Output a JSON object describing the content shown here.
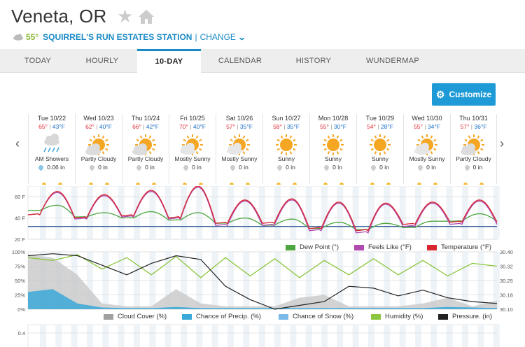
{
  "location": {
    "city": "Veneta, OR",
    "current_temp": "55°",
    "station": "SQUIRREL'S RUN ESTATES STATION",
    "separator": "|",
    "change_label": "CHANGE"
  },
  "tabs": [
    {
      "label": "TODAY"
    },
    {
      "label": "HOURLY"
    },
    {
      "label": "10-DAY",
      "active": true
    },
    {
      "label": "CALENDAR"
    },
    {
      "label": "HISTORY"
    },
    {
      "label": "WUNDERMAP"
    }
  ],
  "customize_label": "Customize",
  "days": [
    {
      "name": "Tue 10/22",
      "hi": "65°",
      "lo": "43°F",
      "icon": "rain-cloud-icon",
      "cond": "AM Showers",
      "precip": "0.06 in",
      "wet": true
    },
    {
      "name": "Wed 10/23",
      "hi": "62°",
      "lo": "40°F",
      "icon": "partly-cloudy-icon",
      "cond": "Partly Cloudy",
      "precip": "0 in"
    },
    {
      "name": "Thu 10/24",
      "hi": "66°",
      "lo": "42°F",
      "icon": "partly-cloudy-icon",
      "cond": "Partly Cloudy",
      "precip": "0 in"
    },
    {
      "name": "Fri 10/25",
      "hi": "70°",
      "lo": "40°F",
      "icon": "mostly-sunny-icon",
      "cond": "Mostly Sunny",
      "precip": "0 in"
    },
    {
      "name": "Sat 10/26",
      "hi": "57°",
      "lo": "35°F",
      "icon": "mostly-sunny-icon",
      "cond": "Mostly Sunny",
      "precip": "0 in"
    },
    {
      "name": "Sun 10/27",
      "hi": "58°",
      "lo": "35°F",
      "icon": "sunny-icon",
      "cond": "Sunny",
      "precip": "0 in"
    },
    {
      "name": "Mon 10/28",
      "hi": "55°",
      "lo": "30°F",
      "icon": "sunny-icon",
      "cond": "Sunny",
      "precip": "0 in"
    },
    {
      "name": "Tue 10/29",
      "hi": "54°",
      "lo": "28°F",
      "icon": "sunny-icon",
      "cond": "Sunny",
      "precip": "0 in"
    },
    {
      "name": "Wed 10/30",
      "hi": "55°",
      "lo": "34°F",
      "icon": "mostly-sunny-icon",
      "cond": "Mostly Sunny",
      "precip": "0 in"
    },
    {
      "name": "Thu 10/31",
      "hi": "57°",
      "lo": "36°F",
      "icon": "partly-cloudy-icon",
      "cond": "Partly Cloudy",
      "precip": "0 in"
    }
  ],
  "temp_chart": {
    "y_ticks": [
      "60 F",
      "40 F",
      "20 F"
    ],
    "freeze_line": 32,
    "legend": [
      {
        "label": "Dew Point (°)",
        "color": "#4ea641"
      },
      {
        "label": "Feels Like (°F)",
        "color": "#b04ab0"
      },
      {
        "label": "Temperature (°F)",
        "color": "#d9262e"
      }
    ]
  },
  "cloud_chart": {
    "y_left_ticks": [
      "100%",
      "75%",
      "50%",
      "25%",
      "0%"
    ],
    "y_right_ticks": [
      "30.40",
      "30.32",
      "30.25",
      "30.18",
      "30.10"
    ],
    "legend": [
      {
        "label": "Cloud Cover (%)",
        "color": "#a0a0a0"
      },
      {
        "label": "Chance of Precip. (%)",
        "color": "#3aa8d8"
      },
      {
        "label": "Chance of Snow (%)",
        "color": "#7ab8e8"
      },
      {
        "label": "Humidity (%)",
        "color": "#8cc63f"
      },
      {
        "label": "Pressure. (in)",
        "color": "#222222"
      }
    ]
  },
  "precip_chart": {
    "y_ticks": [
      "0.4"
    ]
  },
  "chart_data": {
    "type": "line",
    "x": [
      "Tue 10/22",
      "Wed 10/23",
      "Thu 10/24",
      "Fri 10/25",
      "Sat 10/26",
      "Sun 10/27",
      "Mon 10/28",
      "Tue 10/29",
      "Wed 10/30",
      "Thu 10/31"
    ],
    "ylim": [
      20,
      70
    ],
    "series": [
      {
        "name": "Temperature (°F)",
        "highs": [
          65,
          62,
          66,
          70,
          57,
          58,
          55,
          54,
          55,
          57
        ],
        "lows": [
          43,
          40,
          42,
          40,
          35,
          35,
          30,
          28,
          34,
          36
        ]
      },
      {
        "name": "Feels Like (°F)",
        "highs": [
          64,
          61,
          65,
          69,
          56,
          57,
          54,
          53,
          54,
          56
        ],
        "lows": [
          43,
          39,
          41,
          39,
          33,
          33,
          28,
          26,
          32,
          34
        ]
      },
      {
        "name": "Dew Point (°)",
        "highs": [
          52,
          45,
          46,
          45,
          40,
          39,
          36,
          35,
          37,
          44
        ],
        "lows": [
          47,
          41,
          40,
          38,
          35,
          33,
          30,
          29,
          31,
          37
        ]
      }
    ]
  }
}
